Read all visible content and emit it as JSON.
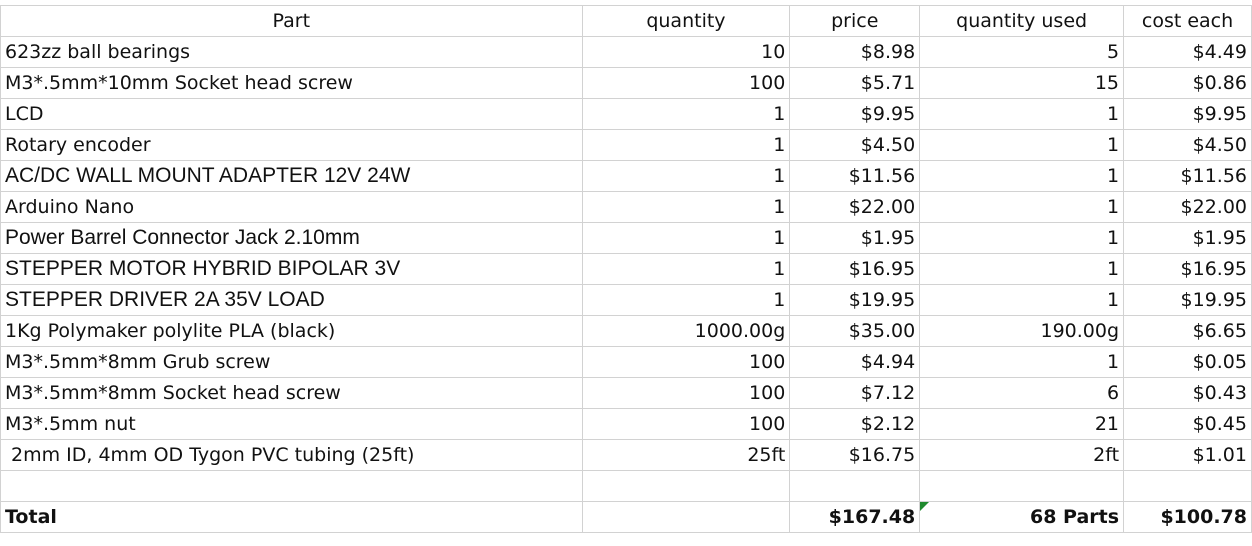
{
  "headers": {
    "part": "Part",
    "quantity": "quantity",
    "price": "price",
    "quantity_used": "quantity used",
    "cost_each": "cost each"
  },
  "rows": [
    {
      "part": "623zz ball bearings",
      "quantity": "10",
      "price": "$8.98",
      "quantity_used": "5",
      "cost_each": "$4.49"
    },
    {
      "part": "M3*.5mm*10mm Socket head screw",
      "quantity": "100",
      "price": "$5.71",
      "quantity_used": "15",
      "cost_each": "$0.86"
    },
    {
      "part": "LCD",
      "quantity": "1",
      "price": "$9.95",
      "quantity_used": "1",
      "cost_each": "$9.95"
    },
    {
      "part": "Rotary encoder",
      "quantity": "1",
      "price": "$4.50",
      "quantity_used": "1",
      "cost_each": "$4.50"
    },
    {
      "part": "AC/DC WALL MOUNT ADAPTER 12V 24W",
      "quantity": "1",
      "price": "$11.56",
      "quantity_used": "1",
      "cost_each": "$11.56"
    },
    {
      "part": "Arduino Nano",
      "quantity": "1",
      "price": "$22.00",
      "quantity_used": "1",
      "cost_each": "$22.00"
    },
    {
      "part": "Power Barrel Connector Jack 2.10mm",
      "quantity": "1",
      "price": "$1.95",
      "quantity_used": "1",
      "cost_each": "$1.95"
    },
    {
      "part": "STEPPER MOTOR HYBRID BIPOLAR 3V",
      "quantity": "1",
      "price": "$16.95",
      "quantity_used": "1",
      "cost_each": "$16.95"
    },
    {
      "part": "STEPPER DRIVER 2A 35V LOAD",
      "quantity": "1",
      "price": "$19.95",
      "quantity_used": "1",
      "cost_each": "$19.95"
    },
    {
      "part": "1Kg Polymaker polylite PLA (black)",
      "quantity": "1000.00g",
      "price": "$35.00",
      "quantity_used": "190.00g",
      "cost_each": "$6.65"
    },
    {
      "part": "M3*.5mm*8mm Grub screw",
      "quantity": "100",
      "price": "$4.94",
      "quantity_used": "1",
      "cost_each": "$0.05"
    },
    {
      "part": "M3*.5mm*8mm  Socket head screw",
      "quantity": "100",
      "price": "$7.12",
      "quantity_used": "6",
      "cost_each": "$0.43"
    },
    {
      "part": "M3*.5mm nut",
      "quantity": "100",
      "price": "$2.12",
      "quantity_used": "21",
      "cost_each": "$0.45"
    },
    {
      "part": "2mm ID, 4mm OD Tygon PVC tubing (25ft)",
      "quantity": "25ft",
      "price": "$16.75",
      "quantity_used": "2ft",
      "cost_each": "$1.01"
    }
  ],
  "total": {
    "label": "Total",
    "price": "$167.48",
    "quantity_used": "68 Parts",
    "cost_each": "$100.78"
  }
}
